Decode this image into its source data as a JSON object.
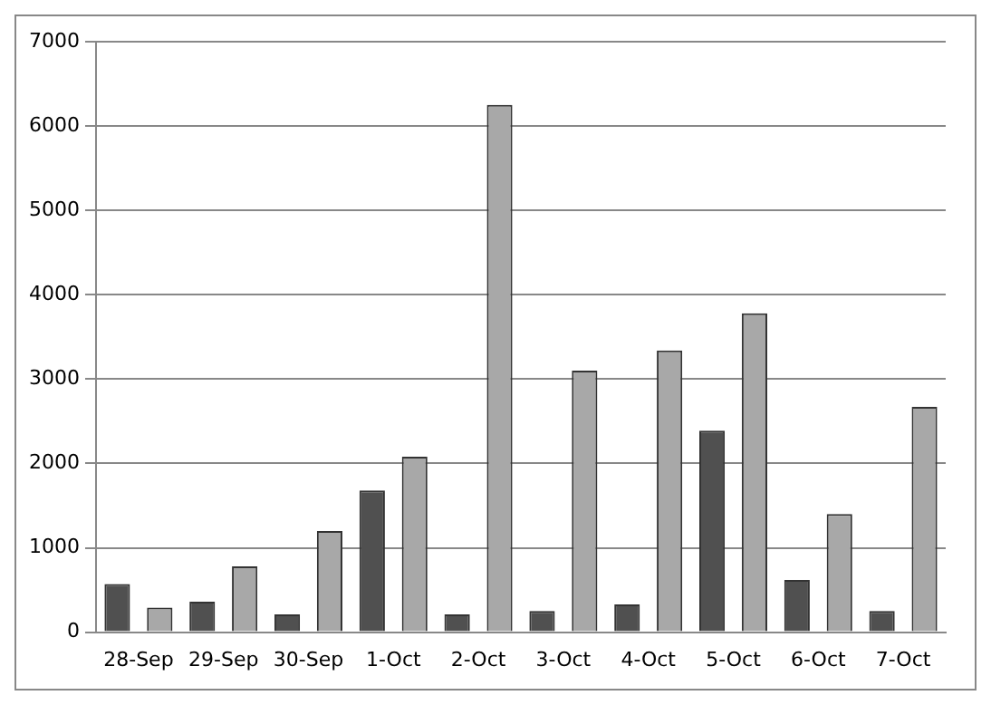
{
  "chart_data": {
    "type": "bar",
    "categories": [
      "28-Sep",
      "29-Sep",
      "30-Sep",
      "1-Oct",
      "2-Oct",
      "3-Oct",
      "4-Oct",
      "5-Oct",
      "6-Oct",
      "7-Oct"
    ],
    "series": [
      {
        "color": "#505050",
        "values": [
          570,
          360,
          210,
          1680,
          210,
          250,
          330,
          2390,
          620,
          250
        ]
      },
      {
        "color": "#a8a8a8",
        "values": [
          290,
          780,
          1200,
          2080,
          6250,
          3100,
          3340,
          3780,
          1400,
          2670
        ]
      }
    ],
    "ylim": [
      0,
      7000
    ],
    "yticks": [
      0,
      1000,
      2000,
      3000,
      4000,
      5000,
      6000,
      7000
    ],
    "grid": "y",
    "legend": false
  }
}
